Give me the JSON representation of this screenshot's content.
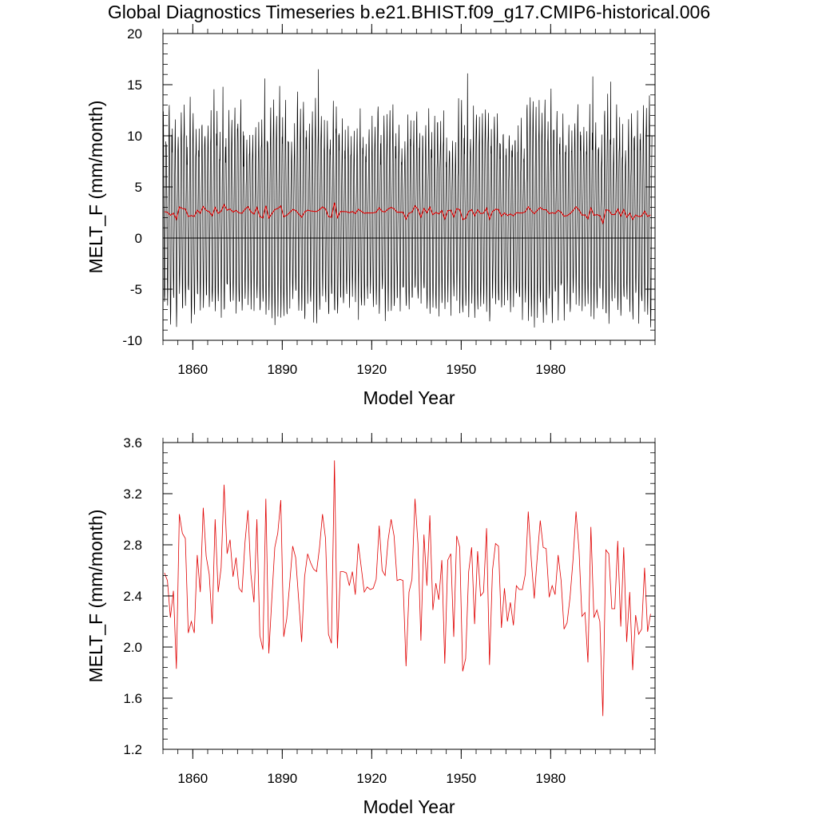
{
  "title": "Global Diagnostics Timeseries b.e21.BHIST.f09_g17.CMIP6-historical.006",
  "colors": {
    "monthly": "#000000",
    "annual": "#e00000",
    "axes": "#000000"
  },
  "chart_data": [
    {
      "type": "line",
      "panel": "top",
      "xlabel": "Model Year",
      "ylabel": "MELT_F (mm/month)",
      "xlim": [
        1850,
        2015
      ],
      "ylim": [
        -10,
        20
      ],
      "xticks": [
        1860,
        1890,
        1920,
        1950,
        1980
      ],
      "yticks": [
        -10,
        -5,
        0,
        5,
        10,
        15,
        20
      ],
      "ytick_labels": [
        "-10",
        "-5",
        "0",
        "5",
        "10",
        "15",
        "20"
      ],
      "zero_line": true,
      "series": [
        {
          "name": "monthly",
          "style": "seasonal-cycle",
          "seasonal_cycle": [
            9.5,
            11.0,
            8.0,
            3.5,
            -1.0,
            -4.5,
            -6.5,
            -5.5,
            -2.0,
            2.5,
            5.5,
            8.0
          ],
          "notable_peaks": [
            [
              1902.5,
              16.5
            ],
            [
              1952.5,
              16.1
            ],
            [
              1884.5,
              15.6
            ],
            [
              1994.5,
              15.8
            ],
            [
              2000.5,
              15.3
            ],
            [
              1870.5,
              14.8
            ]
          ],
          "notable_troughs": [
            [
              1915.5,
              -8.0
            ],
            [
              1869.5,
              -7.8
            ],
            [
              1946.5,
              -7.6
            ],
            [
              2011.5,
              -7.2
            ]
          ]
        },
        {
          "name": "annual mean",
          "color": "#e00000",
          "values": [
            2.58,
            2.52,
            2.23,
            2.44,
            1.83,
            3.04,
            2.89,
            2.85,
            2.11,
            2.2,
            2.11,
            2.72,
            2.43,
            3.09,
            2.71,
            2.57,
            2.18,
            3.0,
            2.43,
            2.62,
            3.27,
            2.73,
            2.84,
            2.55,
            2.7,
            2.46,
            2.43,
            2.82,
            3.07,
            2.57,
            2.35,
            3.0,
            2.09,
            1.98,
            3.16,
            1.95,
            2.38,
            2.78,
            2.89,
            3.15,
            2.08,
            2.22,
            2.5,
            2.79,
            2.7,
            2.37,
            2.04,
            2.55,
            2.73,
            2.66,
            2.61,
            2.59,
            2.78,
            3.04,
            2.85,
            2.1,
            2.03,
            3.46,
            1.99,
            2.59,
            2.59,
            2.58,
            2.48,
            2.59,
            2.41,
            2.81,
            2.62,
            2.43,
            2.47,
            2.45,
            2.46,
            2.53,
            2.95,
            2.6,
            2.56,
            2.84,
            3.0,
            2.87,
            2.52,
            2.53,
            2.52,
            1.85,
            2.43,
            2.53,
            3.16,
            2.81,
            2.05,
            2.88,
            2.48,
            3.03,
            2.29,
            2.5,
            2.37,
            2.68,
            1.87,
            2.68,
            2.73,
            2.08,
            2.87,
            2.78,
            1.81,
            1.91,
            2.59,
            2.78,
            2.18,
            2.75,
            2.4,
            2.43,
            2.93,
            1.86,
            2.6,
            2.81,
            2.79,
            2.15,
            2.46,
            2.2,
            2.35,
            2.17,
            2.48,
            2.45,
            2.45,
            2.57,
            3.06,
            2.68,
            2.38,
            2.7,
            2.99,
            2.78,
            2.77,
            2.39,
            2.48,
            2.41,
            2.72,
            2.52,
            2.14,
            2.19,
            2.39,
            2.68,
            3.06,
            2.76,
            2.24,
            2.27,
            1.88,
            2.94,
            2.23,
            2.29,
            2.2,
            1.46,
            2.76,
            2.73,
            2.3,
            2.3,
            2.83,
            2.16,
            2.78,
            2.04,
            2.43,
            1.82,
            2.25,
            2.1,
            2.14,
            2.62,
            2.12,
            2.26
          ]
        }
      ]
    },
    {
      "type": "line",
      "panel": "bottom",
      "xlabel": "Model Year",
      "ylabel": "MELT_F (mm/month)",
      "xlim": [
        1850,
        2015
      ],
      "ylim": [
        1.2,
        3.6
      ],
      "xticks": [
        1860,
        1890,
        1920,
        1950,
        1980
      ],
      "yticks": [
        1.2,
        1.6,
        2.0,
        2.4,
        2.8,
        3.2,
        3.6
      ],
      "ytick_labels": [
        "1.2",
        "1.6",
        "2.0",
        "2.4",
        "2.8",
        "3.2",
        "3.6"
      ],
      "series_ref": "annual mean"
    }
  ]
}
